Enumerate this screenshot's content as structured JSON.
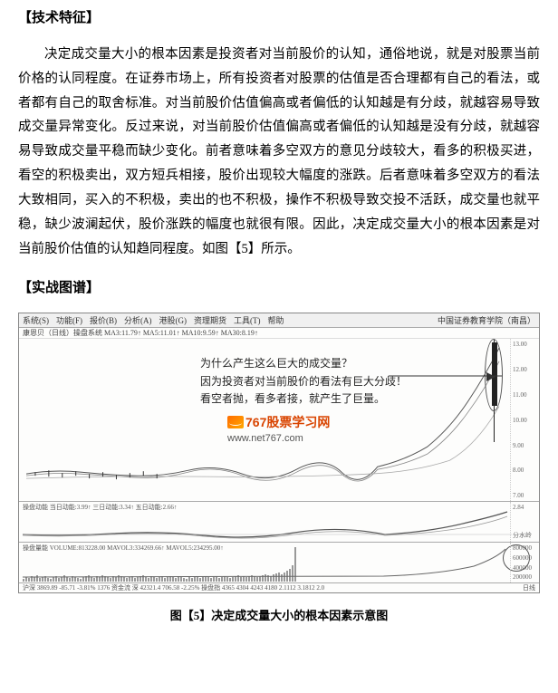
{
  "sections": {
    "tech_header": "【技术特征】",
    "body": "决定成交量大小的根本因素是投资者对当前股价的认知，通俗地说，就是对股票当前价格的认同程度。在证券市场上，所有投资者对股票的估值是否合理都有自己的看法，或者都有自己的取舍标准。对当前股价估值偏高或者偏低的认知越是有分歧，就越容易导致成交量异常变化。反过来说，对当前股价估值偏高或者偏低的认知越是没有分歧，就越容易导致成交量平稳而缺少变化。前者意味着多空双方的意见分歧较大，看多的积极买进，看空的积极卖出，双方短兵相接，股价出现较大幅度的涨跌。后者意味着多空双方的看法大致相同，买入的不积极，卖出的也不积极，操作不积极导致交投不活跃，成交量也就平稳，缺少波澜起伏，股价涨跌的幅度也就很有限。因此，决定成交量大小的根本因素是对当前股价估值的认知趋同程度。如图【5】所示。",
    "practice_header": "【实战图谱】"
  },
  "chart": {
    "toolbar_items": [
      "系统(S)",
      "功能(F)",
      "报价(B)",
      "分析(A)",
      "港股(G)",
      "资理期货",
      "工具(T)",
      "帮助"
    ],
    "top_right_label": "中国证券教育学院（南昌）",
    "info_line": "康恩贝（日线）操盘系统 MA3:11.79↑ MA5:11.01↑ MA10:9.59↑ MA30:8.19↑",
    "annotation": {
      "line1": "为什么产生这么巨大的成交量？",
      "line2": "因为投资者对当前股价的看法有巨大分歧！",
      "line3": "看空者抛，看多者接，就产生了巨量。"
    },
    "watermark": {
      "brand": "767股票学习网",
      "url": "www.net767.com"
    },
    "y_ticks_main": [
      "13.00",
      "12.50",
      "12.00",
      "11.50",
      "11.00",
      "10.50",
      "10.00",
      "9.50",
      "9.00",
      "8.50",
      "8.00",
      "7.50",
      "7.00"
    ],
    "sub1_label": "操盘动能 当日动能:3.99↑ 三日动能:3.34↑ 五日动能:2.66↑",
    "sub1_ticks": [
      "2.84",
      "分水岭"
    ],
    "sub2_label": "操盘量能 VOLUME:813228.00 MAVOL3:334269.66↑ MAVOL5:234295.00↑",
    "sub2_ticks": [
      "800000",
      "600000",
      "400000",
      "200000"
    ],
    "bottom_bar": "沪深 3869.89 -85.71 -3.81% 1376 资金流 深 42321.4 706.58 -2.25% 操盘指 4365 4304 4243 4180 2.1112 3.1812 2.0",
    "date_label": "日线",
    "volume_bars": [
      3,
      5,
      4,
      6,
      5,
      7,
      4,
      5,
      6,
      4,
      3,
      5,
      6,
      4,
      5,
      7,
      5,
      4,
      6,
      5,
      4,
      3,
      5,
      6,
      7,
      5,
      4,
      6,
      5,
      7,
      6,
      5,
      4,
      6,
      5,
      7,
      6,
      5,
      4,
      5,
      6,
      4,
      5,
      6,
      7,
      5,
      4,
      6,
      5,
      4,
      5,
      6,
      4,
      5,
      6,
      5,
      4,
      6,
      5,
      4,
      3,
      5,
      4,
      6,
      5,
      4,
      5,
      6,
      5,
      4,
      5,
      6,
      4,
      5,
      6,
      5,
      4,
      5,
      6,
      7,
      5,
      6,
      5,
      6,
      7,
      6,
      5,
      6,
      7,
      8,
      7,
      6,
      8,
      9,
      10,
      8,
      10,
      12,
      14,
      18,
      38
    ]
  },
  "caption": "图【5】决定成交量大小的根本因素示意图",
  "colors": {
    "text": "#000000",
    "watermark_brand": "#d94400",
    "border": "#888888"
  }
}
